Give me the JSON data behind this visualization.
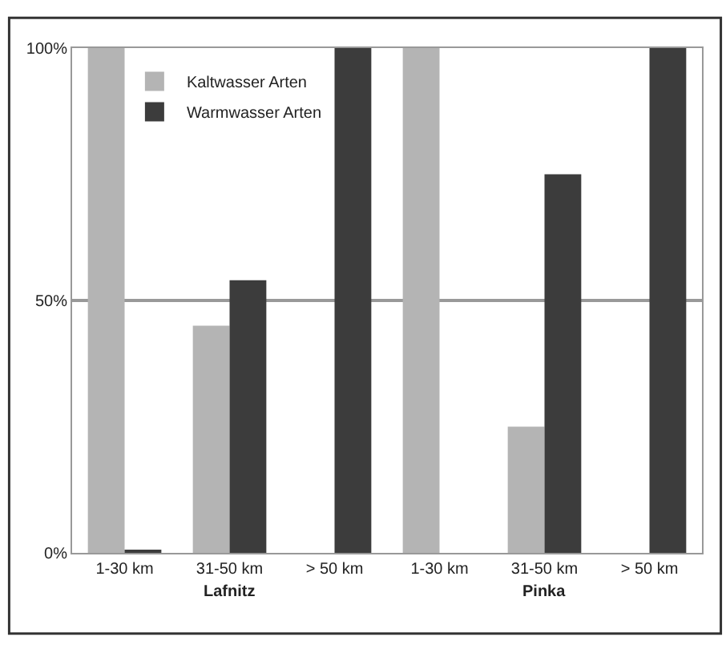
{
  "chart_data": {
    "type": "bar",
    "categories": [
      "1-30 km",
      "31-50 km",
      "> 50 km",
      "1-30 km",
      "31-50 km",
      "> 50 km"
    ],
    "series": [
      {
        "name": "Kaltwasser Arten",
        "color": "#b4b4b4",
        "values": [
          100,
          45,
          null,
          100,
          25,
          null
        ]
      },
      {
        "name": "Warmwasser Arten",
        "color": "#3c3c3c",
        "values": [
          0.5,
          54,
          100,
          null,
          75,
          100
        ]
      }
    ],
    "annotations": [
      "Lafnitz",
      "Pinka"
    ],
    "ylim": [
      0,
      100
    ],
    "yticks": [
      {
        "value": 0,
        "label": "0%"
      },
      {
        "value": 50,
        "label": "50%"
      },
      {
        "value": 100,
        "label": "100%"
      }
    ],
    "grid": "y",
    "legend": "top left"
  }
}
